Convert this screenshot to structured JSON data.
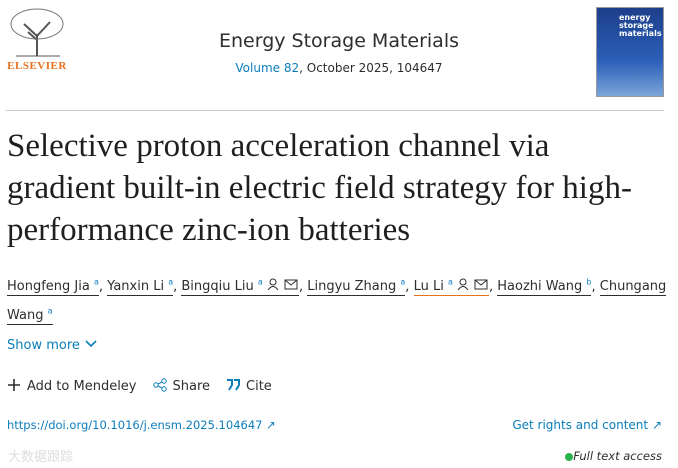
{
  "header": {
    "publisher": "ELSEVIER",
    "journal": "Energy Storage Materials",
    "volume": "Volume 82",
    "issue_info": ", October 2025, 104647",
    "cover_title": "energy storage materials"
  },
  "article": {
    "title": "Selective proton acceleration channel via gradient built-in electric field strategy for high-performance zinc-ion batteries",
    "separator": ",",
    "authors": [
      {
        "name": "Hongfeng Jia",
        "affil": "a",
        "contact": false
      },
      {
        "name": "Yanxin Li",
        "affil": "a",
        "contact": false
      },
      {
        "name": "Bingqiu Liu",
        "affil": "a",
        "contact": true
      },
      {
        "name": "Lingyu Zhang",
        "affil": "a",
        "contact": false
      },
      {
        "name": "Lu Li",
        "affil": "a",
        "contact": true
      },
      {
        "name": "Haozhi Wang",
        "affil": "b",
        "contact": false
      },
      {
        "name": "Chungang Wang",
        "affil": "a",
        "contact": false
      }
    ],
    "show_more": "Show more",
    "actions": [
      "Add to Mendeley",
      "Share",
      "Cite"
    ],
    "doi": "https://doi.org/10.1016/j.ensm.2025.104647",
    "rights": "Get rights and content",
    "access": "Full text access",
    "watermark": "大数据跟踪"
  }
}
